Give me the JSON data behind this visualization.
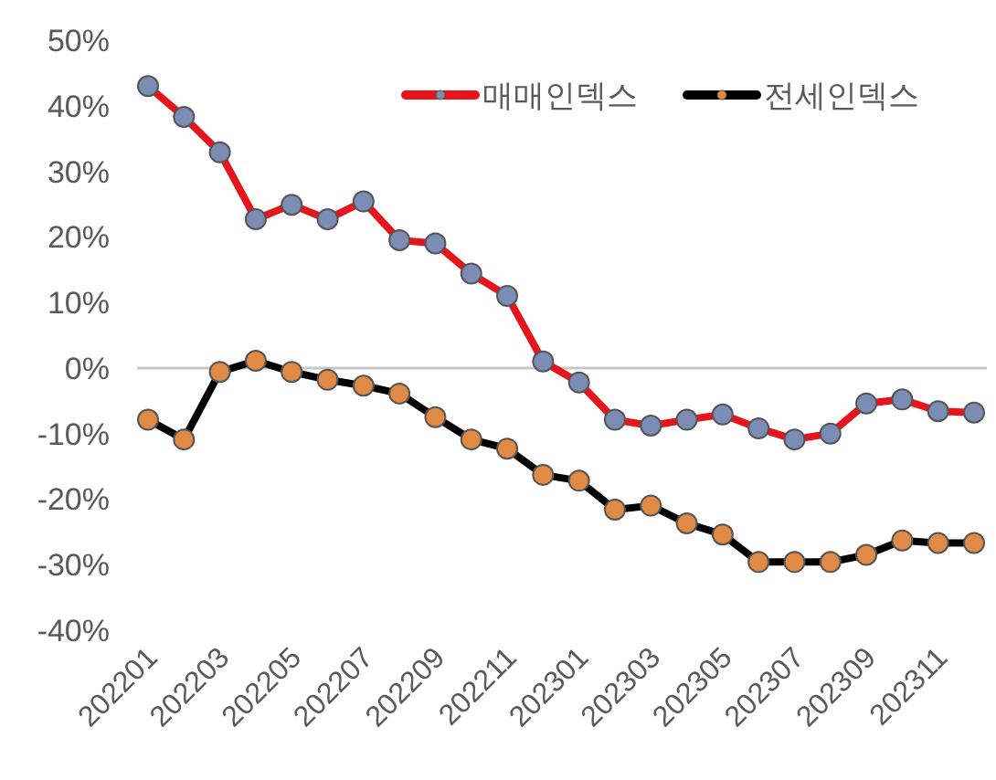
{
  "chart_data": {
    "type": "line",
    "categories": [
      "202201",
      null,
      "202203",
      null,
      "202205",
      null,
      "202207",
      null,
      "202209",
      null,
      "202211",
      null,
      "202301",
      null,
      "202303",
      null,
      "202305",
      null,
      "202307",
      null,
      "202309",
      null,
      "202311",
      null
    ],
    "series": [
      {
        "name": "매매인덱스",
        "color": "#e8141c",
        "values": [
          43,
          38.3,
          32.9,
          22.7,
          24.9,
          22.7,
          25.4,
          19.5,
          19,
          14.4,
          11,
          1,
          -2.2,
          -7.9,
          -8.8,
          -7.9,
          -7.1,
          -9.2,
          -10.9,
          -10,
          -5.4,
          -4.8,
          -6.6,
          -6.8
        ]
      },
      {
        "name": "전세인덱스",
        "color": "#000000",
        "values": [
          -7.9,
          -10.9,
          -0.6,
          1.1,
          -0.6,
          -1.8,
          -2.7,
          -3.9,
          -7.5,
          -10.9,
          -12.3,
          -16.3,
          -17.2,
          -21.6,
          -21,
          -23.7,
          -25.4,
          -29.6,
          -29.6,
          -29.6,
          -28.5,
          -26.3,
          -26.7,
          -26.7
        ]
      }
    ],
    "ylim": [
      -40,
      50
    ],
    "yticks": [
      {
        "value": -40,
        "label": "-40%"
      },
      {
        "value": -30,
        "label": "-30%"
      },
      {
        "value": -20,
        "label": "-20%"
      },
      {
        "value": -10,
        "label": "-10%"
      },
      {
        "value": 0,
        "label": "0%"
      },
      {
        "value": 10,
        "label": "10%"
      },
      {
        "value": 20,
        "label": "20%"
      },
      {
        "value": 30,
        "label": "30%"
      },
      {
        "value": 40,
        "label": "40%"
      },
      {
        "value": 50,
        "label": "50%"
      }
    ],
    "ref_lines": [
      {
        "axis": "y",
        "value": 0,
        "color": "#c8c8c8"
      }
    ],
    "marker": "circle",
    "legend": "top right"
  }
}
